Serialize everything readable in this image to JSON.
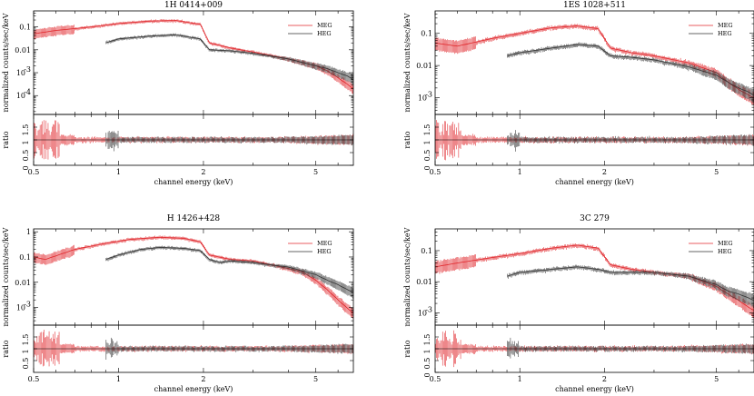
{
  "figure": {
    "xlabel": "channel energy (keV)",
    "ylabel_top": "normalized counts/sec/keV",
    "ylabel_bottom": "ratio",
    "colors": {
      "MEG": "#e0262b",
      "HEG": "#333333"
    }
  },
  "chart_data": [
    {
      "type": "line",
      "title": "1H 0414+009",
      "xlabel": "channel energy (keV)",
      "ylabel": "normalized counts/sec/keV",
      "x_scale": "log",
      "y_scale": "log",
      "xlim": [
        0.5,
        6.8
      ],
      "ylim": [
        1.5e-05,
        0.5
      ],
      "x_ticks": [
        0.5,
        1,
        2,
        5
      ],
      "y_ticks": [
        {
          "value": 0.1,
          "label": "0.1"
        },
        {
          "value": 0.01,
          "label": "0.01"
        },
        {
          "value": 0.001,
          "label": "10",
          "exp": "-3"
        },
        {
          "value": 0.0001,
          "label": "10",
          "exp": "-4"
        }
      ],
      "ratio_ylim": [
        0,
        2
      ],
      "ratio_ticks": [
        0,
        0.5,
        1,
        1.5
      ],
      "legend": "top-right",
      "series": [
        {
          "name": "MEG",
          "x": [
            0.5,
            0.6,
            0.8,
            1.0,
            1.3,
            1.6,
            1.95,
            2.1,
            2.5,
            3.0,
            4.0,
            5.0,
            5.5,
            6.0,
            6.5,
            6.8
          ],
          "y": [
            0.05,
            0.07,
            0.1,
            0.14,
            0.18,
            0.19,
            0.13,
            0.02,
            0.012,
            0.008,
            0.004,
            0.002,
            0.0012,
            0.0006,
            0.0003,
            0.0002
          ]
        },
        {
          "name": "HEG",
          "x": [
            0.9,
            1.0,
            1.3,
            1.6,
            1.95,
            2.1,
            2.5,
            3.0,
            4.0,
            5.0,
            5.5,
            6.0,
            6.5,
            6.8
          ],
          "y": [
            0.02,
            0.03,
            0.04,
            0.045,
            0.03,
            0.01,
            0.009,
            0.007,
            0.004,
            0.002,
            0.0015,
            0.001,
            0.0007,
            0.0005
          ]
        }
      ]
    },
    {
      "type": "line",
      "title": "1ES 1028+511",
      "xlabel": "channel energy (keV)",
      "ylabel": "normalized counts/sec/keV",
      "x_scale": "log",
      "y_scale": "log",
      "xlim": [
        0.5,
        6.8
      ],
      "ylim": [
        0.0003,
        0.5
      ],
      "x_ticks": [
        0.5,
        1,
        2,
        5
      ],
      "y_ticks": [
        {
          "value": 0.1,
          "label": "0.1"
        },
        {
          "value": 0.01,
          "label": "0.01"
        },
        {
          "value": 0.001,
          "label": "10",
          "exp": "-3"
        }
      ],
      "ratio_ylim": [
        0,
        2
      ],
      "ratio_ticks": [
        0,
        0.5,
        1,
        1.5
      ],
      "legend": "top-right",
      "series": [
        {
          "name": "MEG",
          "x": [
            0.5,
            0.6,
            0.8,
            1.0,
            1.3,
            1.6,
            1.9,
            2.1,
            2.5,
            3.0,
            4.0,
            5.0,
            5.5,
            6.0,
            6.5,
            6.8
          ],
          "y": [
            0.05,
            0.04,
            0.07,
            0.1,
            0.15,
            0.17,
            0.14,
            0.035,
            0.025,
            0.02,
            0.012,
            0.006,
            0.003,
            0.0018,
            0.0012,
            0.001
          ]
        },
        {
          "name": "HEG",
          "x": [
            0.9,
            1.0,
            1.3,
            1.6,
            1.9,
            2.1,
            2.5,
            3.0,
            4.0,
            5.0,
            5.5,
            6.0,
            6.5,
            6.8
          ],
          "y": [
            0.02,
            0.025,
            0.035,
            0.045,
            0.04,
            0.02,
            0.018,
            0.015,
            0.009,
            0.005,
            0.003,
            0.002,
            0.0015,
            0.0012
          ]
        }
      ]
    },
    {
      "type": "line",
      "title": "H 1426+428",
      "xlabel": "channel energy (keV)",
      "ylabel": "normalized counts/sec/keV",
      "x_scale": "log",
      "y_scale": "log",
      "xlim": [
        0.5,
        6.8
      ],
      "ylim": [
        0.0002,
        1.3
      ],
      "x_ticks": [
        0.5,
        1,
        2,
        5
      ],
      "y_ticks": [
        {
          "value": 1,
          "label": "1"
        },
        {
          "value": 0.1,
          "label": "0.1"
        },
        {
          "value": 0.01,
          "label": "0.01"
        },
        {
          "value": 0.001,
          "label": "10",
          "exp": "-3"
        }
      ],
      "ratio_ylim": [
        0,
        2
      ],
      "ratio_ticks": [
        0.5,
        1,
        1.5
      ],
      "legend": "top-right",
      "series": [
        {
          "name": "MEG",
          "x": [
            0.5,
            0.55,
            0.7,
            0.9,
            1.1,
            1.4,
            1.7,
            1.95,
            2.1,
            2.5,
            3.0,
            4.0,
            4.5,
            5.0,
            5.5,
            6.0,
            6.5,
            6.8
          ],
          "y": [
            0.1,
            0.08,
            0.2,
            0.35,
            0.5,
            0.6,
            0.55,
            0.4,
            0.12,
            0.08,
            0.07,
            0.035,
            0.025,
            0.012,
            0.005,
            0.002,
            0.0009,
            0.0006
          ]
        },
        {
          "name": "HEG",
          "x": [
            0.9,
            1.0,
            1.2,
            1.4,
            1.7,
            1.95,
            2.1,
            2.3,
            2.5,
            3.0,
            4.0,
            5.0,
            5.5,
            6.0,
            6.5,
            6.8
          ],
          "y": [
            0.08,
            0.12,
            0.2,
            0.24,
            0.22,
            0.18,
            0.08,
            0.06,
            0.07,
            0.06,
            0.04,
            0.02,
            0.012,
            0.008,
            0.005,
            0.004
          ]
        }
      ]
    },
    {
      "type": "line",
      "title": "3C 279",
      "xlabel": "channel energy (keV)",
      "ylabel": "normalized counts/sec/keV",
      "x_scale": "log",
      "y_scale": "log",
      "xlim": [
        0.5,
        6.8
      ],
      "ylim": [
        0.0004,
        0.5
      ],
      "x_ticks": [
        0.5,
        1,
        2,
        5
      ],
      "y_ticks": [
        {
          "value": 0.1,
          "label": "0.1"
        },
        {
          "value": 0.01,
          "label": "0.01"
        },
        {
          "value": 0.001,
          "label": "10",
          "exp": "-3"
        }
      ],
      "ratio_ylim": [
        0,
        2
      ],
      "ratio_ticks": [
        0,
        0.5,
        1,
        1.5
      ],
      "legend": "top-right",
      "series": [
        {
          "name": "MEG",
          "x": [
            0.5,
            0.6,
            0.8,
            1.0,
            1.3,
            1.6,
            1.9,
            2.1,
            2.5,
            3.0,
            4.0,
            5.0,
            5.5,
            6.0,
            6.5,
            6.8
          ],
          "y": [
            0.03,
            0.04,
            0.06,
            0.08,
            0.12,
            0.15,
            0.12,
            0.035,
            0.025,
            0.02,
            0.015,
            0.007,
            0.004,
            0.0025,
            0.0015,
            0.0012
          ]
        },
        {
          "name": "HEG",
          "x": [
            0.9,
            1.0,
            1.3,
            1.6,
            1.9,
            2.1,
            2.5,
            3.0,
            4.0,
            5.0,
            5.5,
            6.0,
            6.5,
            6.8
          ],
          "y": [
            0.015,
            0.02,
            0.025,
            0.03,
            0.025,
            0.02,
            0.02,
            0.02,
            0.015,
            0.008,
            0.005,
            0.004,
            0.003,
            0.0025
          ]
        }
      ]
    }
  ]
}
